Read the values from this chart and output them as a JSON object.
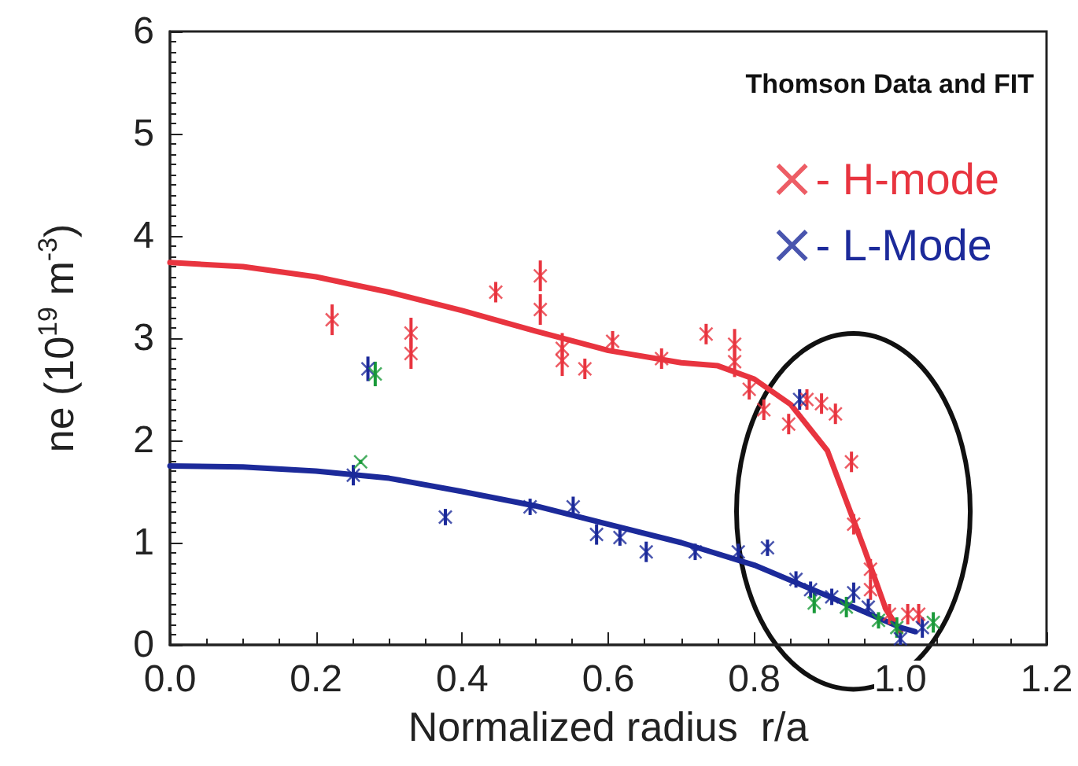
{
  "chart_data": {
    "type": "scatter",
    "xlabel": "Normalized radius  r/a",
    "ylabel": "ne (10$^{19}$ m$^{-3}$)",
    "annotations": [
      "Thomson Data and FIT"
    ],
    "xlim": [
      0,
      1.2
    ],
    "xticks": [
      {
        "value": 0,
        "label": "0.0"
      },
      {
        "value": 0.2,
        "label": "0.2"
      },
      {
        "value": 0.4,
        "label": "0.4"
      },
      {
        "value": 0.6,
        "label": "0.6"
      },
      {
        "value": 0.8,
        "label": "0.8"
      },
      {
        "value": 1,
        "label": "1.0"
      },
      {
        "value": 1.2,
        "label": "1.2"
      }
    ],
    "ylim": [
      0,
      6
    ],
    "yticks": [
      0,
      1,
      2,
      3,
      4,
      5,
      6
    ],
    "grid": false,
    "legend": "top right",
    "marker": "cross",
    "series": [
      {
        "name": "- H-mode",
        "color": "#e8343f",
        "x": [
          0.222,
          0.33,
          0.33,
          0.446,
          0.507,
          0.507,
          0.537,
          0.537,
          0.568,
          0.606,
          0.673,
          0.734,
          0.773,
          0.773,
          0.793,
          0.813,
          0.847,
          0.872,
          0.892,
          0.911,
          0.933,
          0.936,
          0.959,
          0.959,
          0.985,
          1.01,
          1.025
        ],
        "values": [
          3.18,
          3.05,
          2.85,
          3.45,
          3.61,
          3.28,
          2.9,
          2.78,
          2.7,
          2.97,
          2.8,
          3.04,
          2.94,
          2.77,
          2.5,
          2.3,
          2.16,
          2.4,
          2.36,
          2.26,
          1.79,
          1.18,
          0.74,
          0.54,
          0.3,
          0.3,
          0.3
        ],
        "errors": [
          0.15,
          0.15,
          0.15,
          0.1,
          0.15,
          0.15,
          0.15,
          0.15,
          0.1,
          0.1,
          0.1,
          0.1,
          0.15,
          0.15,
          0.1,
          0.1,
          0.1,
          0.1,
          0.1,
          0.1,
          0.1,
          0.1,
          0.1,
          0.1,
          0.1,
          0.1,
          0.1
        ]
      },
      {
        "name": "- L-Mode",
        "color": "#1c2a9a",
        "x": [
          0.251,
          0.271,
          0.377,
          0.493,
          0.552,
          0.584,
          0.616,
          0.652,
          0.719,
          0.778,
          0.818,
          0.857,
          0.862,
          0.877,
          0.906,
          0.936,
          0.956,
          1.0,
          1.03
        ],
        "values": [
          1.66,
          2.7,
          1.25,
          1.35,
          1.35,
          1.08,
          1.05,
          0.91,
          0.91,
          0.91,
          0.95,
          0.64,
          2.4,
          0.54,
          0.47,
          0.51,
          0.37,
          0.06,
          0.17
        ],
        "errors": [
          0.1,
          0.12,
          0.08,
          0.08,
          0.1,
          0.1,
          0.08,
          0.1,
          0.08,
          0.08,
          0.08,
          0.08,
          0.1,
          0.08,
          0.08,
          0.1,
          0.08,
          0.06,
          0.1
        ]
      },
      {
        "color": "#1a9a3a",
        "x": [
          0.261,
          0.281,
          0.882,
          0.926,
          0.97,
          0.995,
          1.045
        ],
        "values": [
          1.79,
          2.65,
          0.41,
          0.37,
          0.24,
          0.17,
          0.22
        ],
        "errors": [
          0.02,
          0.12,
          0.1,
          0.1,
          0.08,
          0.1,
          0.1
        ]
      },
      {
        "type": "line",
        "color": "#e8343f",
        "marker": "none",
        "x": [
          0,
          0.1,
          0.2,
          0.3,
          0.4,
          0.5,
          0.6,
          0.7,
          0.75,
          0.8,
          0.85,
          0.9,
          0.95,
          0.98,
          1.0
        ],
        "values": [
          3.74,
          3.7,
          3.6,
          3.45,
          3.27,
          3.07,
          2.88,
          2.76,
          2.73,
          2.6,
          2.35,
          1.9,
          0.95,
          0.35,
          0.13
        ]
      },
      {
        "type": "line",
        "color": "#1c2a9a",
        "marker": "none",
        "x": [
          0,
          0.1,
          0.2,
          0.3,
          0.4,
          0.5,
          0.6,
          0.7,
          0.8,
          0.9,
          1.0,
          1.02
        ],
        "values": [
          1.75,
          1.74,
          1.7,
          1.63,
          1.5,
          1.36,
          1.18,
          1.0,
          0.78,
          0.48,
          0.17,
          0.13
        ]
      }
    ]
  }
}
